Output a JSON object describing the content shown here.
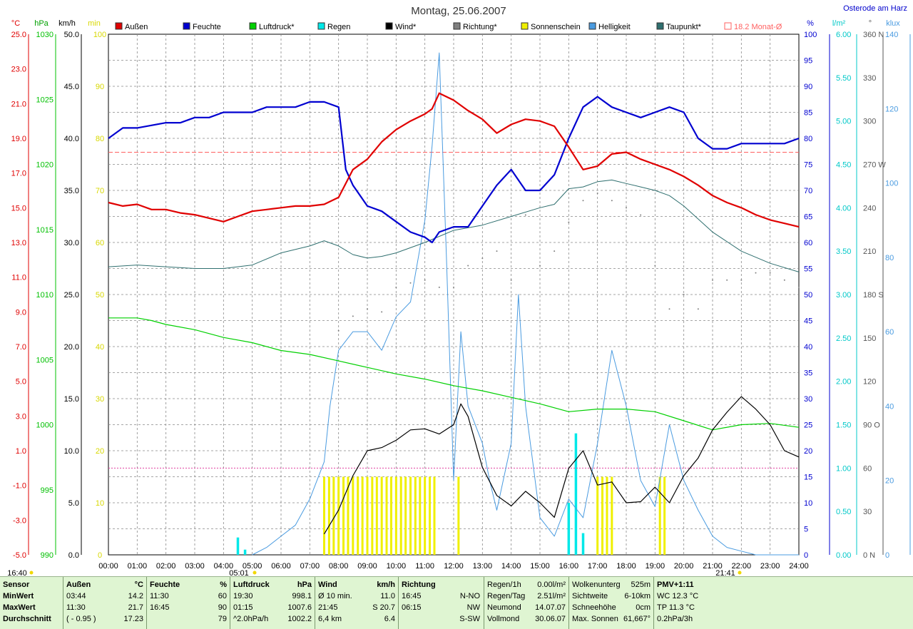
{
  "title": "Montag, 25.06.2007",
  "station": "Osterode am Harz",
  "legend": [
    {
      "label": "Außen",
      "color": "#e00000"
    },
    {
      "label": "Feuchte",
      "color": "#0000d0"
    },
    {
      "label": "Luftdruck*",
      "color": "#00d000"
    },
    {
      "label": "Regen",
      "color": "#00e8e8"
    },
    {
      "label": "Wind*",
      "color": "#000000"
    },
    {
      "label": "Richtung*",
      "color": "#808080"
    },
    {
      "label": "Sonnenschein",
      "color": "#f0f000"
    },
    {
      "label": "Helligkeit",
      "color": "#4a9be0"
    },
    {
      "label": "Taupunkt*",
      "color": "#2f6f6f"
    },
    {
      "label": "18.2 Monat-Ø",
      "color": "#ff6060"
    }
  ],
  "left_axes": {
    "temp_unit": "°C",
    "pressure_unit": "hPa",
    "wind_unit": "km/h",
    "sun_unit": "min",
    "temp_ticks": [
      "25.0",
      "23.0",
      "21.0",
      "19.0",
      "17.0",
      "15.0",
      "13.0",
      "11.0",
      "9.0",
      "7.0",
      "5.0",
      "3.0",
      "1.0",
      "-1.0",
      "-3.0",
      "-5.0"
    ],
    "pressure_ticks": [
      "1030",
      "1025",
      "1020",
      "1015",
      "1010",
      "1005",
      "1000",
      "995",
      "990"
    ],
    "wind_ticks": [
      "50.0",
      "45.0",
      "40.0",
      "35.0",
      "30.0",
      "25.0",
      "20.0",
      "15.0",
      "10.0",
      "5.0",
      "0.0"
    ],
    "sun_ticks": [
      "100",
      "90",
      "80",
      "70",
      "60",
      "50",
      "40",
      "30",
      "20",
      "10",
      "0"
    ]
  },
  "right_axes": {
    "humidity_unit": "%",
    "rain_unit": "l/m²",
    "direction_unit": "°",
    "light_unit": "klux",
    "humidity_ticks": [
      "100",
      "95",
      "90",
      "85",
      "80",
      "75",
      "70",
      "65",
      "60",
      "55",
      "50",
      "45",
      "40",
      "35",
      "30",
      "25",
      "20",
      "15",
      "10",
      "5",
      "0"
    ],
    "rain_ticks": [
      "6.00",
      "5.50",
      "5.00",
      "4.50",
      "4.00",
      "3.50",
      "3.00",
      "2.50",
      "2.00",
      "1.50",
      "1.00",
      "0.50",
      "0.00"
    ],
    "direction_ticks": [
      "360 N",
      "330",
      "300",
      "270 W",
      "240",
      "210",
      "180 S",
      "150",
      "120",
      "90 O",
      "60",
      "30",
      "0 N"
    ],
    "light_ticks": [
      "140",
      "120",
      "100",
      "80",
      "60",
      "40",
      "20",
      "0"
    ]
  },
  "x_ticks": [
    "00:00",
    "01:00",
    "02:00",
    "03:00",
    "04:00",
    "05:00",
    "06:00",
    "07:00",
    "08:00",
    "09:00",
    "10:00",
    "11:00",
    "12:00",
    "13:00",
    "14:00",
    "15:00",
    "16:00",
    "17:00",
    "18:00",
    "19:00",
    "20:00",
    "21:00",
    "22:00",
    "23:00",
    "24:00"
  ],
  "sun_events": {
    "sunrise_label": "05:01",
    "sunset_label": "21:41",
    "left_marker": "16:40"
  },
  "chart_data": {
    "type": "line",
    "x_unit": "hours",
    "xlim": [
      0,
      24
    ],
    "monthly_avg_temp": 18.2,
    "series": [
      {
        "name": "Außen",
        "color": "#e00000",
        "axis": "temp",
        "ylim": [
          -5,
          25
        ],
        "x": [
          0,
          0.5,
          1,
          1.5,
          2,
          2.5,
          3,
          3.5,
          4,
          4.5,
          5,
          5.5,
          6,
          6.5,
          7,
          7.5,
          8,
          8.5,
          9,
          9.5,
          10,
          10.5,
          11,
          11.25,
          11.5,
          12,
          12.5,
          13,
          13.5,
          14,
          14.5,
          15,
          15.5,
          16,
          16.5,
          17,
          17.5,
          18,
          18.5,
          19,
          19.5,
          20,
          20.5,
          21,
          21.5,
          22,
          22.5,
          23,
          23.5,
          24
        ],
        "values": [
          15.3,
          15.1,
          15.2,
          14.9,
          14.9,
          14.7,
          14.6,
          14.4,
          14.2,
          14.5,
          14.8,
          14.9,
          15.0,
          15.1,
          15.1,
          15.2,
          15.6,
          17.2,
          17.8,
          18.8,
          19.5,
          20.0,
          20.4,
          20.7,
          21.6,
          21.2,
          20.6,
          20.1,
          19.3,
          19.8,
          20.1,
          20.0,
          19.7,
          18.5,
          17.2,
          17.4,
          18.1,
          18.2,
          17.8,
          17.5,
          17.2,
          16.8,
          16.3,
          15.7,
          15.3,
          15.0,
          14.6,
          14.3,
          14.1,
          13.9
        ]
      },
      {
        "name": "Feuchte",
        "color": "#0000d0",
        "axis": "humidity",
        "ylim": [
          0,
          100
        ],
        "x": [
          0,
          0.5,
          1,
          2,
          2.5,
          3,
          3.5,
          4,
          4.5,
          5,
          5.5,
          6,
          6.5,
          7,
          7.5,
          8,
          8.25,
          8.5,
          9,
          9.5,
          10,
          10.5,
          11,
          11.25,
          11.5,
          12,
          12.5,
          13,
          13.5,
          14,
          14.5,
          15,
          15.5,
          16,
          16.5,
          17,
          17.5,
          18,
          18.5,
          19,
          19.5,
          20,
          20.5,
          21,
          21.5,
          22,
          22.5,
          23,
          23.5,
          24
        ],
        "values": [
          80,
          82,
          82,
          83,
          83,
          84,
          84,
          85,
          85,
          85,
          86,
          86,
          86,
          87,
          87,
          86,
          74,
          71,
          67,
          66,
          64,
          62,
          61,
          60,
          62,
          63,
          63,
          67,
          71,
          74,
          70,
          70,
          73,
          80,
          86,
          88,
          86,
          85,
          84,
          85,
          86,
          85,
          80,
          78,
          78,
          79,
          79,
          79,
          79,
          80
        ]
      },
      {
        "name": "Luftdruck*",
        "color": "#00d000",
        "axis": "pressure",
        "ylim": [
          990,
          1030
        ],
        "x": [
          0,
          1,
          1.5,
          2,
          3,
          4,
          5,
          6,
          7,
          8,
          9,
          10,
          11,
          12,
          13,
          14,
          15,
          16,
          17,
          18,
          19,
          20,
          21,
          22,
          23,
          24
        ],
        "values": [
          1008.2,
          1008.2,
          1008.0,
          1007.7,
          1007.3,
          1006.7,
          1006.3,
          1005.7,
          1005.4,
          1004.9,
          1004.4,
          1003.9,
          1003.5,
          1003.0,
          1002.6,
          1002.1,
          1001.6,
          1001.0,
          1001.2,
          1001.2,
          1001.0,
          1000.3,
          999.6,
          1000.0,
          1000.1,
          999.8
        ]
      },
      {
        "name": "Wind*",
        "color": "#000000",
        "axis": "wind",
        "ylim": [
          0,
          50
        ],
        "x": [
          7.5,
          8,
          8.5,
          9,
          9.5,
          10,
          10.5,
          11,
          11.5,
          12,
          12.25,
          12.5,
          13,
          13.5,
          14,
          14.5,
          15,
          15.5,
          16,
          16.5,
          17,
          17.5,
          18,
          18.5,
          19,
          19.5,
          20,
          20.5,
          21,
          21.5,
          22,
          22.5,
          23,
          23.5,
          24
        ],
        "values": [
          2,
          4.3,
          7.6,
          10,
          10.3,
          11,
          12,
          12.1,
          11.6,
          12.5,
          14.5,
          13.3,
          8.4,
          5.7,
          4.7,
          6.1,
          5.0,
          3.6,
          8.3,
          10.0,
          6.7,
          7.0,
          5.0,
          5.1,
          6.5,
          5.0,
          7.6,
          9.3,
          12.0,
          13.7,
          15.2,
          14.0,
          12.5,
          10.0,
          9.4
        ]
      },
      {
        "name": "Taupunkt*",
        "color": "#2f6f6f",
        "axis": "temp",
        "ylim": [
          -5,
          25
        ],
        "x": [
          0,
          1,
          2,
          3,
          4,
          5,
          6,
          7,
          7.5,
          8,
          8.5,
          9,
          9.5,
          10,
          11,
          12,
          13,
          14,
          15,
          15.5,
          16,
          16.5,
          17,
          17.5,
          18,
          18.5,
          19,
          19.5,
          20,
          21,
          22,
          23,
          24
        ],
        "values": [
          11.6,
          11.7,
          11.6,
          11.5,
          11.5,
          11.7,
          12.4,
          12.8,
          13.1,
          12.8,
          12.3,
          12.1,
          12.2,
          12.4,
          13.0,
          13.7,
          14.0,
          14.5,
          15.0,
          15.2,
          16.1,
          16.2,
          16.5,
          16.6,
          16.4,
          16.2,
          16.0,
          15.7,
          15.1,
          13.6,
          12.5,
          11.8,
          11.3
        ]
      },
      {
        "name": "Helligkeit",
        "color": "#4a9be0",
        "axis": "light",
        "ylim": [
          0,
          140
        ],
        "x": [
          5,
          5.5,
          6,
          6.5,
          7,
          7.5,
          7.7,
          8,
          8.5,
          9,
          9.5,
          10,
          10.5,
          11,
          11.25,
          11.5,
          11.75,
          12,
          12.25,
          12.5,
          13,
          13.25,
          13.5,
          14,
          14.25,
          14.5,
          15,
          15.5,
          16,
          16.5,
          17,
          17.5,
          18,
          18.5,
          19,
          19.5,
          20,
          20.5,
          21,
          21.5,
          22,
          22.5,
          23,
          24
        ],
        "values": [
          0,
          2,
          5,
          8,
          15,
          25,
          40,
          55,
          60,
          60,
          55,
          64,
          68,
          90,
          110,
          135,
          80,
          20,
          60,
          40,
          30,
          20,
          12,
          30,
          70,
          40,
          10,
          5,
          15,
          10,
          30,
          55,
          40,
          20,
          13,
          35,
          20,
          12,
          5,
          2,
          1,
          0,
          0,
          0
        ]
      },
      {
        "name": "Richtung*",
        "color": "#808080",
        "axis": "direction",
        "ylim": [
          0,
          360
        ],
        "type": "scatter",
        "x": [
          8,
          8.5,
          9,
          9.5,
          10,
          10.5,
          11,
          11.5,
          12,
          12.5,
          13,
          13.5,
          14,
          14.5,
          15,
          15.5,
          16,
          16.5,
          17,
          17.5,
          18,
          18.5,
          19,
          19.5,
          20,
          20.5,
          21,
          21.5,
          22,
          22.5,
          23,
          23.5,
          24
        ],
        "values": [
          155,
          165,
          170,
          168,
          185,
          188,
          190,
          185,
          185,
          200,
          205,
          210,
          190,
          235,
          200,
          210,
          230,
          245,
          250,
          245,
          240,
          235,
          200,
          170,
          180,
          170,
          190,
          190,
          190,
          195,
          195,
          190,
          185
        ]
      }
    ],
    "bars": [
      {
        "name": "Sonnenschein",
        "color": "#f0f000",
        "axis": "sun",
        "ylim": [
          0,
          100
        ],
        "x": [
          7.5,
          7.67,
          7.83,
          8.0,
          8.17,
          8.33,
          8.5,
          8.67,
          8.83,
          9.0,
          9.17,
          9.33,
          9.5,
          9.67,
          9.83,
          10.0,
          10.17,
          10.33,
          10.5,
          10.67,
          10.83,
          11.0,
          11.17,
          11.33,
          12.17,
          17.0,
          17.17,
          17.33,
          17.5,
          19.17,
          19.33
        ],
        "values": [
          15,
          15,
          15,
          15,
          15,
          15,
          15,
          15,
          15,
          15,
          15,
          15,
          15,
          15,
          15,
          15,
          15,
          15,
          15,
          15,
          15,
          15,
          15,
          15,
          15,
          15,
          15,
          15,
          15,
          15,
          15
        ]
      },
      {
        "name": "Regen",
        "color": "#00e8e8",
        "axis": "rain",
        "ylim": [
          0,
          6
        ],
        "x": [
          4.5,
          4.75,
          16.0,
          16.25,
          16.5
        ],
        "values": [
          0.2,
          0.06,
          0.6,
          1.4,
          0.25
        ]
      }
    ]
  },
  "footer": {
    "col_sensor": {
      "head": "Sensor",
      "r1": "MinWert",
      "r2": "MaxWert",
      "r3": "Durchschnitt"
    },
    "col_aussen": {
      "head": "Außen",
      "unit": "°C",
      "r1t": "03:44",
      "r1v": "14.2",
      "r2t": "11:30",
      "r2v": "21.7",
      "r3t": "( - 0.95 )",
      "r3v": "17.23"
    },
    "col_feuchte": {
      "head": "Feuchte",
      "unit": "%",
      "r1t": "11:30",
      "r1v": "60",
      "r2t": "16:45",
      "r2v": "90",
      "r3t": "",
      "r3v": "79"
    },
    "col_druck": {
      "head": "Luftdruck",
      "unit": "hPa",
      "r1t": "19:30",
      "r1v": "998.1",
      "r2t": "01:15",
      "r2v": "1007.6",
      "r3t": "^2.0hPa/h",
      "r3v": "1002.2"
    },
    "col_wind": {
      "head": "Wind",
      "unit": "km/h",
      "r1t": "Ø 10 min.",
      "r1v": "11.0",
      "r2t": "21:45",
      "r2v": "S 20.7",
      "r3t": "6,4 km",
      "r3v": "6.4"
    },
    "col_richtung": {
      "head": "Richtung",
      "r1t": "16:45",
      "r1v": "N-NO",
      "r2t": "06:15",
      "r2v": "NW",
      "r3t": "",
      "r3v": "S-SW"
    },
    "col_regen": {
      "r0t": "Regen/1h",
      "r0v": "0.00l/m²",
      "r1t": "Regen/Tag",
      "r1v": "2.51l/m²",
      "r2t": "Neumond",
      "r2v": "14.07.07",
      "r3t": "Vollmond",
      "r3v": "30.06.07"
    },
    "col_wolken": {
      "r0t": "Wolkenunterg",
      "r0v": "525m",
      "r1t": "Sichtweite",
      "r1v": "6-10km",
      "r2t": "Schneehöhe",
      "r2v": "0cm",
      "r3t": "Max. Sonnen",
      "r3v": "61,667°"
    },
    "col_pmv": {
      "head": "PMV+1:11",
      "r1": "WC 12.3 °C",
      "r2": "TP 11.3 °C",
      "r3": "0.2hPa/3h"
    }
  }
}
